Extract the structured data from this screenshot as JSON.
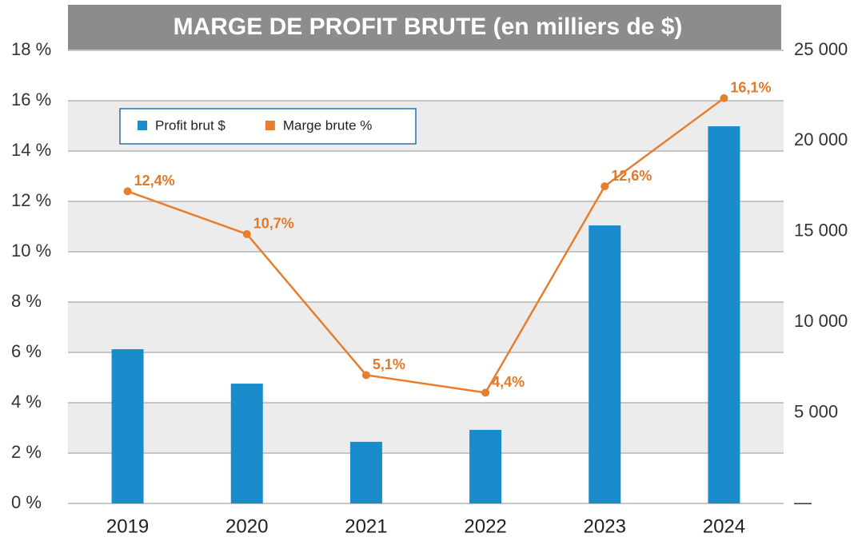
{
  "chart_data": {
    "type": "bar",
    "title": "MARGE DE PROFIT BRUTE (en milliers de $)",
    "categories": [
      "2019",
      "2020",
      "2021",
      "2022",
      "2023",
      "2024"
    ],
    "series": [
      {
        "name": "Profit brut $",
        "color": "#1a8ccc",
        "axis": "y2",
        "values": [
          8510,
          6610,
          3400,
          4060,
          15340,
          20810
        ]
      },
      {
        "name": "Marge brute %",
        "color": "#e67e2e",
        "type": "line",
        "values": [
          12.4,
          10.7,
          5.1,
          4.4,
          12.6,
          16.1
        ],
        "value_labels": [
          "12,4%",
          "10,7%",
          "5,1%",
          "4,4%",
          "12,6%",
          "16,1%"
        ]
      }
    ],
    "ylim": [
      0,
      18
    ],
    "yticks": [
      {
        "value": 0,
        "label": "0 %"
      },
      {
        "value": 2,
        "label": "2 %"
      },
      {
        "value": 4,
        "label": "4 %"
      },
      {
        "value": 6,
        "label": "6 %"
      },
      {
        "value": 8,
        "label": "8 %"
      },
      {
        "value": 10,
        "label": "10 %"
      },
      {
        "value": 12,
        "label": "12 %"
      },
      {
        "value": 14,
        "label": "14 %"
      },
      {
        "value": 16,
        "label": "16 %"
      },
      {
        "value": 18,
        "label": "18 %"
      }
    ],
    "y2lim": [
      0,
      25000
    ],
    "y2ticks": [
      {
        "value": 0,
        "label": "—"
      },
      {
        "value": 5000,
        "label": "5 000"
      },
      {
        "value": 10000,
        "label": "10 000"
      },
      {
        "value": 15000,
        "label": "15 000"
      },
      {
        "value": 20000,
        "label": "20 000"
      },
      {
        "value": 25000,
        "label": "25 000"
      }
    ],
    "grid": true,
    "legend": "upper left"
  }
}
